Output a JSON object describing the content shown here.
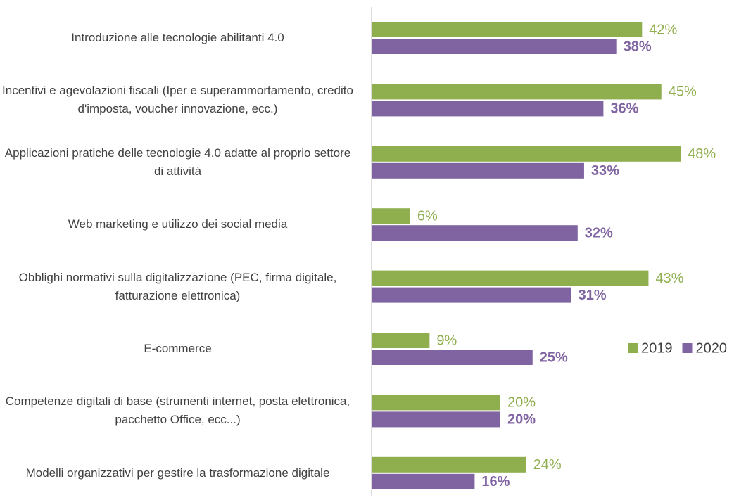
{
  "chart_data": {
    "type": "bar",
    "orientation": "horizontal",
    "categories": [
      "Introduzione alle tecnologie abilitanti 4.0",
      "Incentivi e agevolazioni fiscali (Iper e superammortamento, credito d'imposta, voucher innovazione, ecc.)",
      "Applicazioni pratiche delle tecnologie 4.0 adatte al proprio settore di attività",
      "Web marketing e utilizzo dei social media",
      "Obblighi normativi sulla digitalizzazione (PEC, firma digitale, fatturazione elettronica)",
      "E-commerce",
      "Competenze digitali di base (strumenti internet, posta elettronica, pacchetto Office, ecc...)",
      "Modelli organizzativi per gestire la trasformazione digitale"
    ],
    "series": [
      {
        "name": "2019",
        "color": "#8faf4f",
        "values": [
          42,
          45,
          48,
          6,
          43,
          9,
          20,
          24
        ],
        "value_labels": [
          "42%",
          "45%",
          "48%",
          "6%",
          "43%",
          "9%",
          "20%",
          "24%"
        ]
      },
      {
        "name": "2020",
        "color": "#8064a2",
        "values": [
          38,
          36,
          33,
          32,
          31,
          25,
          20,
          16
        ],
        "value_labels": [
          "38%",
          "36%",
          "33%",
          "32%",
          "31%",
          "25%",
          "20%",
          "16%"
        ]
      }
    ],
    "legend": "right"
  }
}
